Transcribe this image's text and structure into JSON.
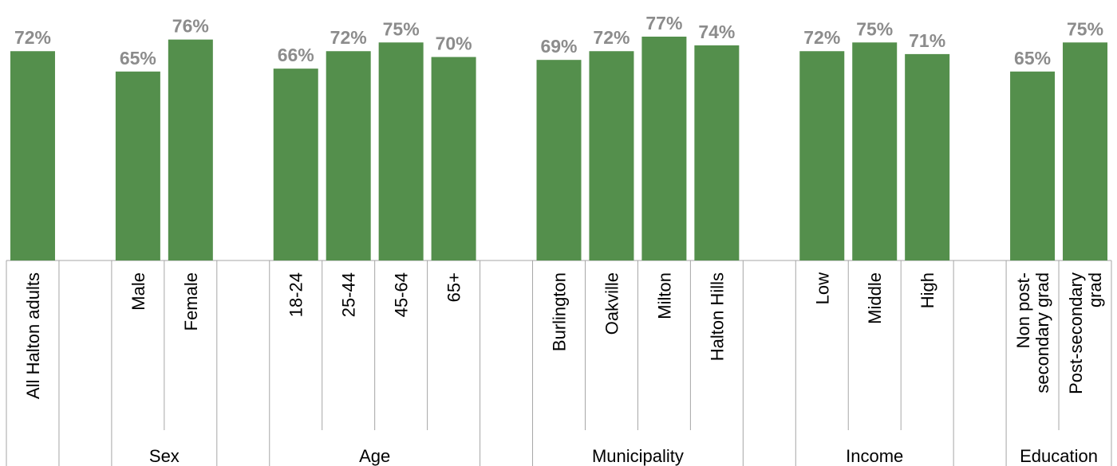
{
  "chart_data": {
    "type": "bar",
    "categories": [
      [
        "All Halton adults"
      ],
      [
        "Male"
      ],
      [
        "Female"
      ],
      [
        "18-24"
      ],
      [
        "25-44"
      ],
      [
        "45-64"
      ],
      [
        "65+"
      ],
      [
        "Burlington"
      ],
      [
        "Oakville"
      ],
      [
        "Milton"
      ],
      [
        "Halton Hills"
      ],
      [
        "Low"
      ],
      [
        "Middle"
      ],
      [
        "High"
      ],
      [
        "Non post-",
        "secondary grad"
      ],
      [
        "Post-secondary",
        "grad"
      ]
    ],
    "values": [
      72,
      65,
      76,
      66,
      72,
      75,
      70,
      69,
      72,
      77,
      74,
      72,
      75,
      71,
      65,
      75
    ],
    "value_labels": [
      "72%",
      "65%",
      "76%",
      "66%",
      "72%",
      "75%",
      "70%",
      "69%",
      "72%",
      "77%",
      "74%",
      "72%",
      "75%",
      "71%",
      "65%",
      "75%"
    ],
    "groups": [
      {
        "name": "",
        "members": 1
      },
      {
        "name": "Sex",
        "members": 2
      },
      {
        "name": "Age",
        "members": 4
      },
      {
        "name": "Municipality",
        "members": 4
      },
      {
        "name": "Income",
        "members": 3
      },
      {
        "name": "Education",
        "members": 2
      }
    ],
    "ylim": [
      0,
      85
    ],
    "grid": false,
    "legend": "none",
    "bar_color": "#548f4c"
  }
}
